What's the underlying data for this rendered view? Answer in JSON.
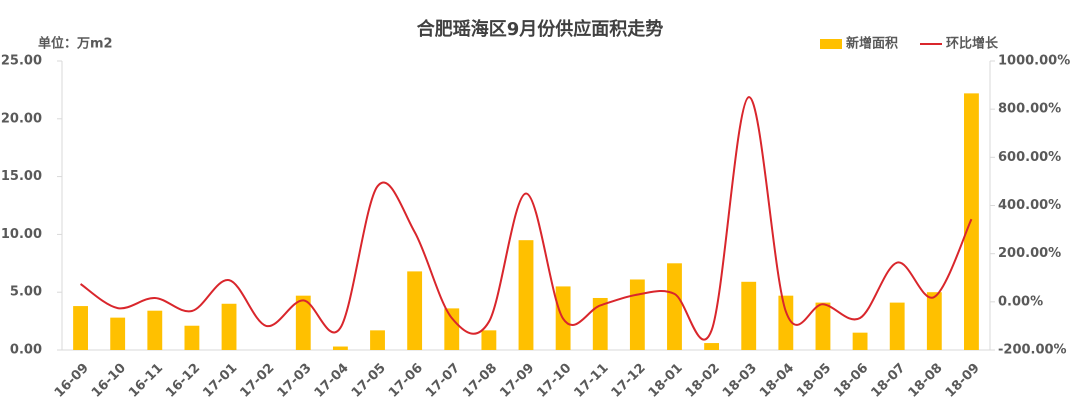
{
  "chart_data": {
    "type": "bar-line",
    "title": "合肥瑶海区9月份供应面积走势",
    "unit_label": "单位：万m2",
    "categories": [
      "16-09",
      "16-10",
      "16-11",
      "16-12",
      "17-01",
      "17-02",
      "17-03",
      "17-04",
      "17-05",
      "17-06",
      "17-07",
      "17-08",
      "17-09",
      "17-10",
      "17-11",
      "17-12",
      "18-01",
      "18-02",
      "18-03",
      "18-04",
      "18-05",
      "18-06",
      "18-07",
      "18-08",
      "18-09"
    ],
    "series": [
      {
        "name": "新增面积",
        "type": "bar",
        "color": "#ffc000",
        "values": [
          3.8,
          2.8,
          3.4,
          2.1,
          4.0,
          0,
          4.7,
          0.3,
          1.7,
          6.8,
          3.6,
          1.7,
          9.5,
          5.5,
          4.5,
          6.1,
          7.5,
          0.6,
          5.9,
          4.7,
          4.1,
          1.5,
          4.1,
          5.0,
          22.2
        ]
      },
      {
        "name": "环比增长",
        "type": "line",
        "axis": "y2",
        "color": "#d9262c",
        "values": [
          74,
          -26,
          16,
          -38,
          90,
          -100,
          6,
          -108,
          480,
          290,
          -67,
          -83,
          450,
          -70,
          -15,
          30,
          33,
          -118,
          850,
          -40,
          -10,
          -67,
          163,
          20,
          343
        ]
      }
    ],
    "ylim": [
      0,
      25
    ],
    "yticks": [
      {
        "value": 0,
        "label": "0.00"
      },
      {
        "value": 5,
        "label": "5.00"
      },
      {
        "value": 10,
        "label": "10.00"
      },
      {
        "value": 15,
        "label": "15.00"
      },
      {
        "value": 20,
        "label": "20.00"
      },
      {
        "value": 25,
        "label": "25.00"
      }
    ],
    "y2lim": [
      -200,
      1000
    ],
    "y2ticks": [
      {
        "value": -200,
        "label": "-200.00%"
      },
      {
        "value": 0,
        "label": "0.00%"
      },
      {
        "value": 200,
        "label": "200.00%"
      },
      {
        "value": 400,
        "label": "400.00%"
      },
      {
        "value": 600,
        "label": "600.00%"
      },
      {
        "value": 800,
        "label": "800.00%"
      },
      {
        "value": 1000,
        "label": "1000.00%"
      }
    ]
  }
}
